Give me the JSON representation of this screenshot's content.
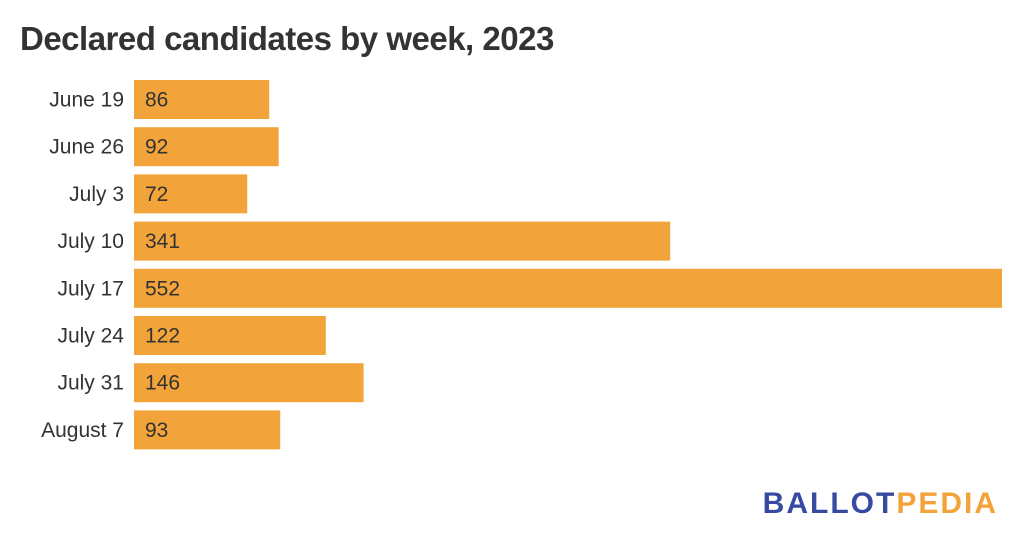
{
  "chart_data": {
    "type": "bar",
    "orientation": "horizontal",
    "title": "Declared candidates by week, 2023",
    "categories": [
      "June 19",
      "June 26",
      "July 3",
      "July 10",
      "July 17",
      "July 24",
      "July 31",
      "August 7"
    ],
    "values": [
      86,
      92,
      72,
      341,
      552,
      122,
      146,
      93
    ],
    "bar_color": "#f2a43a",
    "data_labels": true,
    "grid": false,
    "xlim": [
      0,
      552
    ]
  },
  "logo": {
    "part1": "BALLOT",
    "part2": "PEDIA",
    "colors": {
      "ballot": "#374aa2",
      "pedia": "#f2a43a"
    }
  }
}
